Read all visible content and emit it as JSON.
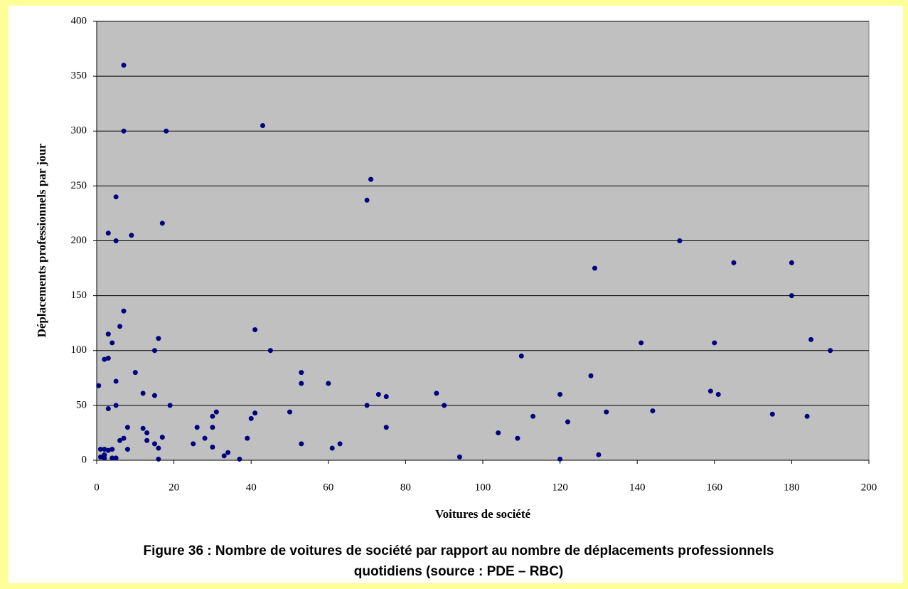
{
  "chart_data": {
    "type": "scatter",
    "caption": [
      "Figure 36 : Nombre de voitures de société par rapport au nombre de déplacements professionnels",
      "quotidiens (source : PDE – RBC)"
    ],
    "xlabel": "Voitures de société",
    "ylabel": "Déplacements professionnels par jour",
    "color": "#000080",
    "grid": true,
    "xlim": [
      0,
      200
    ],
    "xticks": [
      0,
      20,
      40,
      60,
      80,
      100,
      120,
      140,
      160,
      180,
      200
    ],
    "ylim": [
      0,
      400
    ],
    "yticks": [
      0,
      50,
      100,
      150,
      200,
      250,
      300,
      350,
      400
    ],
    "x": [
      7,
      7,
      18,
      43,
      71,
      70,
      5,
      3,
      9,
      5,
      17,
      7,
      6,
      3,
      4,
      16,
      15,
      2,
      3,
      10,
      5,
      12,
      15,
      5,
      19,
      3,
      0.5,
      8,
      12,
      13,
      13,
      8,
      6,
      7,
      17,
      15,
      16,
      16,
      1,
      2,
      3,
      4,
      1,
      2,
      4,
      5,
      2,
      41,
      45,
      53,
      53,
      60,
      41,
      40,
      39,
      37,
      31,
      30,
      30,
      26,
      25,
      28,
      30,
      33,
      34,
      50,
      53,
      61,
      63,
      70,
      73,
      75,
      75,
      88,
      90,
      94,
      104,
      109,
      110,
      113,
      120,
      122,
      120,
      128,
      129,
      130,
      132,
      141,
      144,
      151,
      159,
      160,
      161,
      165,
      175,
      180,
      180,
      184,
      185,
      190
    ],
    "y": [
      360,
      300,
      300,
      305,
      256,
      237,
      240,
      207,
      205,
      200,
      216,
      136,
      122,
      115,
      107,
      111,
      100,
      92,
      93,
      80,
      72,
      61,
      59,
      50,
      50,
      47,
      68,
      30,
      29,
      25,
      18,
      10,
      18,
      20,
      21,
      15,
      11,
      1,
      10,
      10,
      9,
      10,
      3,
      2,
      2,
      2,
      5,
      119,
      100,
      80,
      70,
      70,
      43,
      38,
      20,
      1,
      44,
      40,
      30,
      30,
      15,
      20,
      12,
      4,
      7,
      44,
      15,
      11,
      15,
      50,
      60,
      58,
      30,
      61,
      50,
      3,
      25,
      20,
      95,
      40,
      60,
      35,
      1,
      77,
      175,
      5,
      44,
      107,
      45,
      200,
      63,
      107,
      60,
      180,
      42,
      180,
      150,
      40,
      110,
      100
    ]
  }
}
